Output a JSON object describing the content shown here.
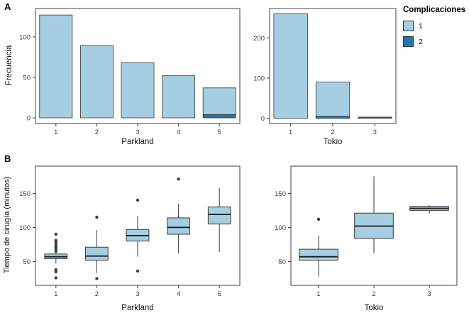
{
  "figure": {
    "panel_a_label": "A",
    "panel_b_label": "B"
  },
  "legend": {
    "title": "Complicaciones",
    "position": "top-right",
    "items": [
      {
        "label": "1",
        "color": "#a6cee3"
      },
      {
        "label": "2",
        "color": "#1f78b4"
      }
    ]
  },
  "chart_data": [
    {
      "id": "bar-parkland",
      "type": "bar",
      "stacked": true,
      "xlabel": "Parkland",
      "ylabel": "Frecuencia",
      "categories": [
        "1",
        "2",
        "3",
        "4",
        "5"
      ],
      "series": [
        {
          "name": "2",
          "color": "#1f78b4",
          "values": [
            0,
            0,
            0,
            0,
            4
          ]
        },
        {
          "name": "1",
          "color": "#a6cee3",
          "values": [
            127,
            89,
            68,
            52,
            33
          ]
        }
      ],
      "yticks": [
        0,
        50,
        100
      ],
      "ylim": [
        -7,
        135
      ],
      "grid": false,
      "legend_position": "right"
    },
    {
      "id": "bar-tokio",
      "type": "bar",
      "stacked": true,
      "xlabel": "Tokio",
      "ylabel": "Frecuencia",
      "categories": [
        "1",
        "2",
        "3"
      ],
      "series": [
        {
          "name": "2",
          "color": "#1f78b4",
          "values": [
            0,
            5,
            3
          ]
        },
        {
          "name": "1",
          "color": "#a6cee3",
          "values": [
            260,
            85,
            0
          ]
        }
      ],
      "yticks": [
        0,
        100,
        200
      ],
      "ylim": [
        -13,
        273
      ],
      "grid": false
    },
    {
      "id": "box-parkland",
      "type": "boxplot",
      "xlabel": "Parkland",
      "ylabel": "Tiempo de cirugía (minutos)",
      "categories": [
        "1",
        "2",
        "3",
        "4",
        "5"
      ],
      "box_fill": "#a6cee3",
      "boxes": [
        {
          "whisker_low": 47,
          "q1": 54,
          "median": 57,
          "q3": 61,
          "whisker_high": 64,
          "outliers": [
            26,
            35,
            38,
            65,
            68,
            71,
            74,
            78,
            81,
            90
          ]
        },
        {
          "whisker_low": 33,
          "q1": 52,
          "median": 58,
          "q3": 71,
          "whisker_high": 96,
          "outliers": [
            25,
            115
          ]
        },
        {
          "whisker_low": 57,
          "q1": 80,
          "median": 88,
          "q3": 97,
          "whisker_high": 117,
          "outliers": [
            36,
            140
          ]
        },
        {
          "whisker_low": 62,
          "q1": 90,
          "median": 100,
          "q3": 114,
          "whisker_high": 135,
          "outliers": [
            171
          ]
        },
        {
          "whisker_low": 64,
          "q1": 105,
          "median": 119,
          "q3": 130,
          "whisker_high": 158,
          "outliers": []
        }
      ],
      "yticks": [
        50,
        100,
        150
      ],
      "ylim": [
        15,
        190
      ],
      "grid": false
    },
    {
      "id": "box-tokio",
      "type": "boxplot",
      "xlabel": "Tokio",
      "ylabel": "Tiempo de cirugía (minutos)",
      "categories": [
        "1",
        "2",
        "3"
      ],
      "box_fill": "#a6cee3",
      "boxes": [
        {
          "whisker_low": 28,
          "q1": 52,
          "median": 57,
          "q3": 68,
          "whisker_high": 88,
          "outliers": [
            112
          ]
        },
        {
          "whisker_low": 62,
          "q1": 84,
          "median": 102,
          "q3": 121,
          "whisker_high": 175,
          "outliers": []
        },
        {
          "whisker_low": 120,
          "q1": 125,
          "median": 128,
          "q3": 131,
          "whisker_high": 133,
          "outliers": []
        }
      ],
      "yticks": [
        50,
        100,
        150
      ],
      "ylim": [
        15,
        190
      ],
      "grid": false
    }
  ]
}
